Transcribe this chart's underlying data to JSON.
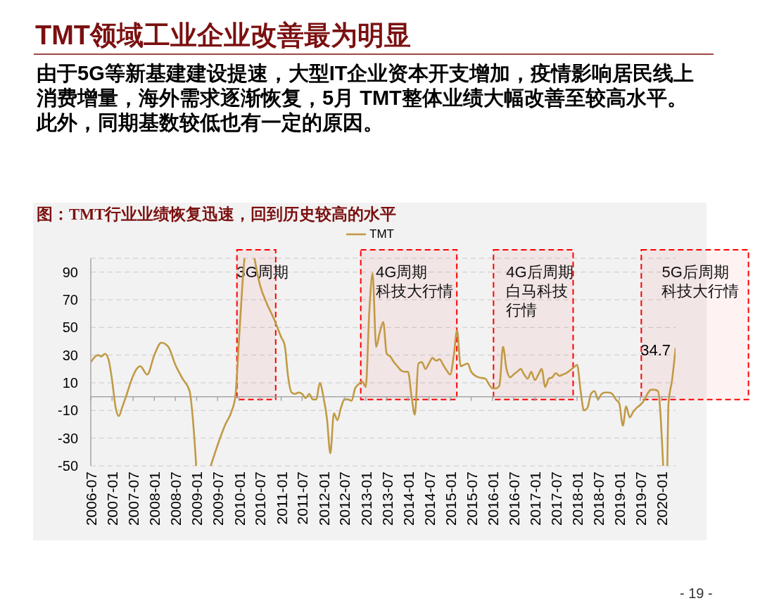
{
  "chart_data": {
    "type": "line",
    "title": "TMT领域工业企业改善最为明显",
    "subtitle": "由于5G等新基建建设提速，大型IT企业资本开支增加，疫情影响居民线上消费增量，海外需求逐渐恢复，5月 TMT整体业绩大幅改善至较高水平。此外，同期基数较低也有一定的原因。",
    "annotations": [
      "图：TMT行业业绩恢复迅速，回到历史较高的水平",
      {
        "text": "34.7",
        "x": "2020-05",
        "y": 34.7
      },
      "- 19 -"
    ],
    "x": [
      "2006-07",
      "2006-09",
      "2006-10",
      "2006-11",
      "2006-12",
      "2007-01",
      "2007-02",
      "2007-03",
      "2007-04",
      "2007-05",
      "2007-06",
      "2007-07",
      "2007-09",
      "2007-11",
      "2008-01",
      "2008-03",
      "2008-05",
      "2008-07",
      "2008-09",
      "2008-11",
      "2008-12",
      "2008-12-28",
      "2009-03",
      "2009-05-03",
      "2009-07",
      "2009-09",
      "2009-11",
      "2009-12",
      "2010-01",
      "2010-02",
      "2010-02-18",
      "2010-04",
      "2010-05-15",
      "2010-07",
      "2010-09",
      "2010-11",
      "2011-01",
      "2011-02",
      "2011-03",
      "2011-04",
      "2011-05",
      "2011-06",
      "2011-07",
      "2011-08",
      "2011-09",
      "2011-10",
      "2011-11",
      "2011-12",
      "2012-01",
      "2012-02",
      "2012-03",
      "2012-04",
      "2012-05",
      "2012-06",
      "2012-07",
      "2012-08",
      "2012-09",
      "2012-10",
      "2012-11",
      "2012-12",
      "2013-01",
      "2013-02",
      "2013-03",
      "2013-04",
      "2013-05",
      "2013-06",
      "2013-07",
      "2013-08",
      "2013-09",
      "2013-10",
      "2013-11",
      "2013-12",
      "2014-01",
      "2014-02",
      "2014-03",
      "2014-04",
      "2014-05",
      "2014-06",
      "2014-07",
      "2014-08",
      "2014-09",
      "2014-10",
      "2014-11",
      "2014-12",
      "2015-01",
      "2015-02",
      "2015-03",
      "2015-04",
      "2015-05",
      "2015-06",
      "2015-07",
      "2015-09",
      "2015-11",
      "2015-12",
      "2016-01",
      "2016-02",
      "2016-03",
      "2016-04",
      "2016-05",
      "2016-06",
      "2016-07",
      "2016-08",
      "2016-09",
      "2016-10",
      "2016-11",
      "2016-12",
      "2017-01",
      "2017-02",
      "2017-03",
      "2017-04",
      "2017-05",
      "2017-06",
      "2017-07",
      "2017-08",
      "2017-09",
      "2017-10",
      "2017-11",
      "2017-12",
      "2018-01",
      "2018-02",
      "2018-03",
      "2018-04",
      "2018-05",
      "2018-06",
      "2018-07",
      "2018-08",
      "2018-09",
      "2018-10",
      "2018-11",
      "2018-12",
      "2019-01",
      "2019-02",
      "2019-03",
      "2019-04",
      "2019-05",
      "2019-06",
      "2019-07",
      "2019-08",
      "2019-09",
      "2019-10",
      "2019-11",
      "2019-12",
      "2020-01-15",
      "2020-02",
      "2020-02-20",
      "2020-03",
      "2020-04",
      "2020-05"
    ],
    "series": [
      {
        "name": "TMT",
        "color": "#c19a45",
        "values": [
          25,
          30,
          29,
          31,
          27,
          12,
          -8,
          -14,
          -7,
          0,
          8,
          15,
          22,
          16,
          30,
          39,
          36,
          23,
          13,
          4,
          -18,
          -50,
          null,
          -50,
          -35,
          -21,
          -10,
          0,
          40,
          82,
          100,
          null,
          100,
          81,
          67,
          56,
          43,
          37,
          15,
          3,
          2,
          3,
          2,
          -1,
          2,
          -2,
          -2,
          10,
          0,
          -16,
          -41,
          -12,
          -17,
          -8,
          -2,
          -2,
          -3,
          6,
          9,
          11,
          7,
          62,
          89,
          36,
          46,
          54,
          31,
          29,
          25,
          22,
          19,
          18,
          18,
          0,
          -13,
          24,
          25,
          20,
          24,
          28,
          26,
          27,
          23,
          19,
          16,
          30,
          48,
          22,
          23,
          24,
          18,
          14,
          13,
          9,
          6,
          6,
          8,
          36,
          20,
          14,
          16,
          18,
          20,
          16,
          13,
          18,
          12,
          16,
          20,
          7,
          13,
          14,
          17,
          15,
          16,
          17,
          19,
          21,
          23,
          4,
          -10,
          -8,
          2,
          4,
          -2,
          2,
          3,
          3,
          2,
          -2,
          -5,
          -21,
          -7,
          -15,
          -11,
          -8,
          -6,
          -3,
          2,
          5,
          5,
          4,
          -50,
          null,
          -50,
          -5,
          12,
          34.7
        ]
      }
    ],
    "xlim": [
      "2006-07",
      "2020-05"
    ],
    "xticks": [
      "2006-07",
      "2007-01",
      "2007-07",
      "2008-01",
      "2008-07",
      "2009-01",
      "2009-07",
      "2010-01",
      "2010-07",
      "2011-01",
      "2011-07",
      "2012-01",
      "2012-07",
      "2013-01",
      "2013-07",
      "2014-01",
      "2014-07",
      "2015-01",
      "2015-07",
      "2016-01",
      "2016-07",
      "2017-01",
      "2017-07",
      "2018-01",
      "2018-07",
      "2019-01",
      "2019-07",
      "2020-01"
    ],
    "ylim": [
      -50,
      100
    ],
    "yticks": [
      -50,
      -30,
      -10,
      10,
      30,
      50,
      70,
      90
    ],
    "grid": "y",
    "legend": "top",
    "marker": "none",
    "bands": [
      {
        "axis": "x",
        "from": "2009-12-15",
        "to": "2010-11-15",
        "label": "3G周期",
        "color": "#ff0000"
      },
      {
        "axis": "x",
        "from": "2012-11-19",
        "to": "2015-02-27",
        "label": "4G周期科技大行情",
        "color": "#ff0000"
      },
      {
        "axis": "x",
        "from": "2016-01-10",
        "to": "2017-11-28",
        "label": "4G后周期白马科技行情",
        "color": "#ff0000"
      },
      {
        "axis": "x",
        "from": "2019-07-10",
        "to": "2022-01-21",
        "label": "5G后周期科技大行情",
        "color": "#ff0000"
      }
    ]
  }
}
